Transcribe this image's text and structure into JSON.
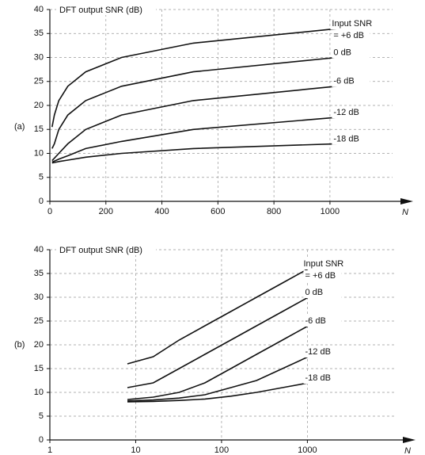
{
  "chart_data": [
    {
      "type": "line",
      "panel_label": "(a)",
      "ylabel": "DFT output SNR (dB)",
      "xlabel": "N",
      "annotation": "Input SNR",
      "x": [
        8,
        16,
        32,
        64,
        128,
        256,
        512,
        1024
      ],
      "series": [
        {
          "name": "= +6 dB",
          "color": "#111111",
          "values": [
            15.5,
            18,
            21,
            24,
            27,
            30,
            33,
            36
          ]
        },
        {
          "name": "0 dB",
          "color": "#111111",
          "values": [
            11,
            12,
            15,
            18,
            21,
            24,
            27,
            30
          ]
        },
        {
          "name": "-6 dB",
          "color": "#111111",
          "values": [
            8.5,
            9,
            10,
            12,
            15,
            18,
            21,
            24
          ]
        },
        {
          "name": "-12 dB",
          "color": "#111111",
          "values": [
            8.2,
            8.4,
            8.8,
            9.5,
            11,
            12.5,
            15,
            17.5
          ]
        },
        {
          "name": "-18 dB",
          "color": "#111111",
          "values": [
            8,
            8.1,
            8.3,
            8.6,
            9.2,
            10,
            11,
            12
          ]
        }
      ],
      "xlim": [
        0,
        1280
      ],
      "xticks": [
        0,
        200,
        400,
        600,
        800,
        1000
      ],
      "ylim": [
        0,
        40
      ],
      "yticks": [
        0,
        5,
        10,
        15,
        20,
        25,
        30,
        35,
        40
      ],
      "grid": true,
      "xscale": "linear"
    },
    {
      "type": "line",
      "panel_label": "(b)",
      "ylabel": "DFT output SNR (dB)",
      "xlabel": "N",
      "annotation": "Input SNR",
      "x": [
        8,
        16,
        32,
        64,
        128,
        256,
        512,
        1024
      ],
      "series": [
        {
          "name": "= +6 dB",
          "color": "#111111",
          "values": [
            16,
            17.5,
            21,
            24,
            27,
            30,
            33,
            36
          ]
        },
        {
          "name": "0 dB",
          "color": "#111111",
          "values": [
            11,
            12,
            15,
            18,
            21,
            24,
            27,
            30
          ]
        },
        {
          "name": "-6 dB",
          "color": "#111111",
          "values": [
            8.5,
            9,
            10,
            12,
            15,
            18,
            21,
            24
          ]
        },
        {
          "name": "-12 dB",
          "color": "#111111",
          "values": [
            8.2,
            8.4,
            8.8,
            9.5,
            11,
            12.5,
            15,
            17.5
          ]
        },
        {
          "name": "-18 dB",
          "color": "#111111",
          "values": [
            8,
            8.1,
            8.3,
            8.6,
            9.2,
            10,
            11,
            12
          ]
        }
      ],
      "xlim": [
        1,
        16000
      ],
      "xticks": [
        1,
        10,
        100,
        1000
      ],
      "ylim": [
        0,
        40
      ],
      "yticks": [
        0,
        5,
        10,
        15,
        20,
        25,
        30,
        35,
        40
      ],
      "grid": true,
      "xscale": "log"
    }
  ]
}
